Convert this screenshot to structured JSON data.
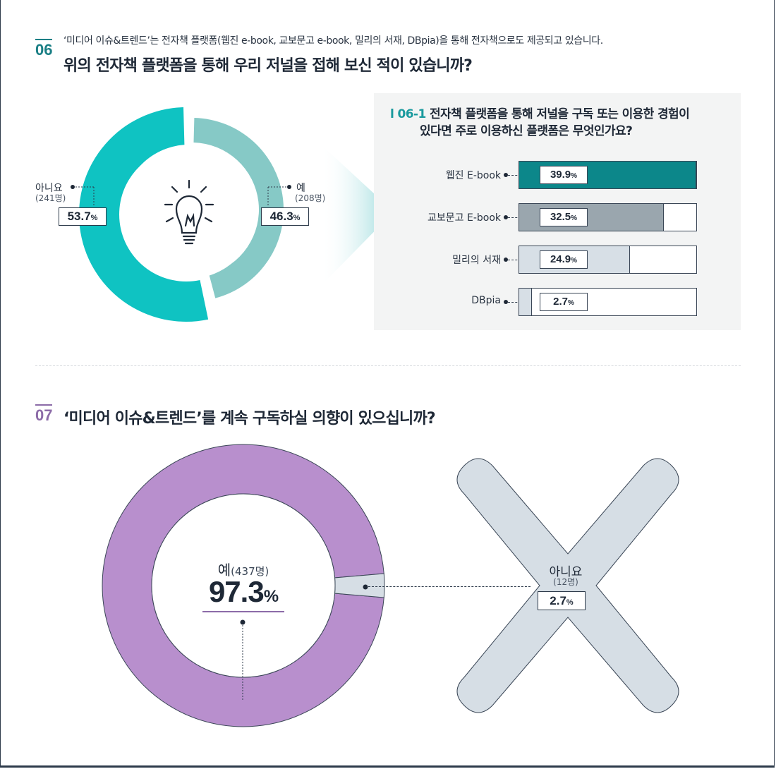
{
  "q06": {
    "number": "06",
    "subtitle": "‘미디어 이슈&트렌드’는 전자책 플랫폼(웹진 e-book, 교보문고 e-book, 밀리의 서재, DBpia)을 통해 전자책으로도 제공되고 있습니다.",
    "title": "위의 전자책 플랫폼을 통해 우리 저널을 접해 보신 적이 있습니까?",
    "icon": "lightbulb-icon"
  },
  "q06_1": {
    "number": "l 06-1",
    "title_line1": "전자책 플랫폼을 통해 저널을 구독 또는 이용한 경험이",
    "title_line2": "있다면 주로 이용하신 플랫폼은 무엇인가요?"
  },
  "q07": {
    "number": "07",
    "title": "‘미디어 이슈&트렌드’를 계속 구독하실 의향이 있으십니까?",
    "icon": "x-mark-icon"
  },
  "pct_sign": "%",
  "colors": {
    "teal": "#0fc3c2",
    "teal_light": "#86c9c6",
    "teal_dark": "#0c878a",
    "gray_bar": "#9aa6ae",
    "light_bar": "#d7dfe6",
    "purple": "#b88fcd",
    "x_gray": "#d6dee5"
  },
  "chart_data": [
    {
      "type": "pie",
      "categories": [
        "아니요",
        "예"
      ],
      "values": [
        53.7,
        46.3
      ],
      "counts": [
        "(241명)",
        "(208명)"
      ],
      "value_labels": [
        "53.7",
        "46.3"
      ]
    },
    {
      "type": "bar",
      "categories": [
        "웹진 E-book",
        "교보문고 E-book",
        "밀리의 서재",
        "DBpia"
      ],
      "values": [
        39.9,
        32.5,
        24.9,
        2.7
      ],
      "value_labels": [
        "39.9",
        "32.5",
        "24.9",
        "2.7"
      ]
    },
    {
      "type": "pie",
      "categories": [
        "예",
        "아니요"
      ],
      "values": [
        97.3,
        2.7
      ],
      "counts": [
        "(437명)",
        "(12명)"
      ],
      "value_labels": [
        "97.3",
        "2.7"
      ]
    }
  ]
}
